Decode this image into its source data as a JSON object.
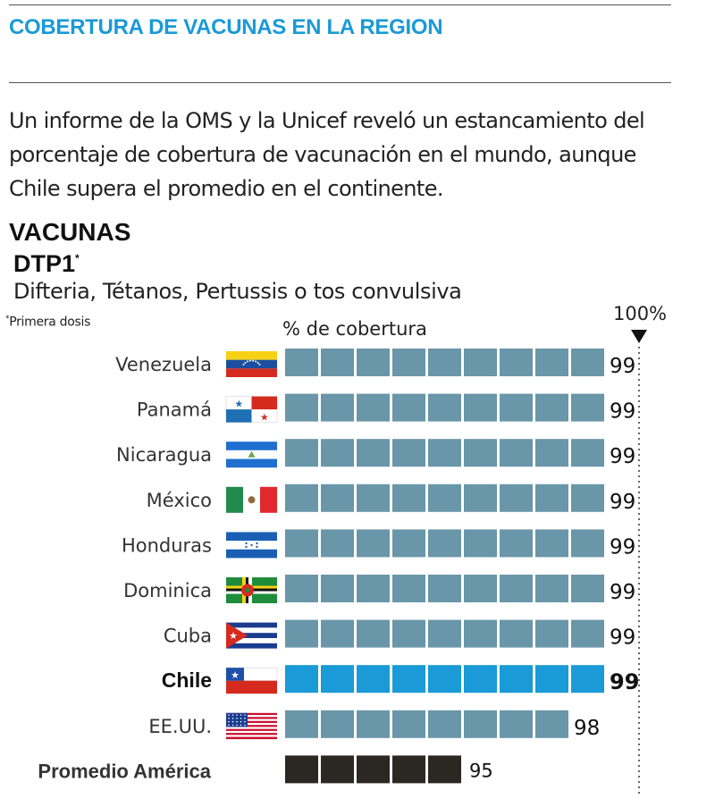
{
  "header": {
    "title": "COBERTURA DE VACUNAS EN LA REGION"
  },
  "intro": "Un informe de la OMS y la Unicef reveló un estancamiento del porcentaje de cobertura de vacunación en el mundo, aunque Chile supera el promedio en el continente.",
  "section_title": "VACUNAS",
  "vaccine": {
    "name": "DTP1",
    "name_mark": "*",
    "description": "Difteria, Tétanos, Pertussis o tos convulsiva"
  },
  "footnote": {
    "mark": "*",
    "text": "Primera dosis"
  },
  "colors": {
    "bar_default": "#6996a8",
    "bar_highlight": "#1a9ad6",
    "bar_average": "#2b2722",
    "accent": "#1a9ad6"
  },
  "chart_data": {
    "type": "bar",
    "orientation": "horizontal",
    "xlabel": "% de cobertura",
    "reference_line": {
      "label": "100%",
      "value": 100
    },
    "x_axis_visible_range": [
      90,
      100
    ],
    "categories": [
      "Venezuela",
      "Panamá",
      "Nicaragua",
      "México",
      "Honduras",
      "Dominica",
      "Cuba",
      "Chile",
      "EE.UU.",
      "Promedio América"
    ],
    "values": [
      99,
      99,
      99,
      99,
      99,
      99,
      99,
      99,
      98,
      95
    ],
    "flags": [
      "venezuela-flag",
      "panama-flag",
      "nicaragua-flag",
      "mexico-flag",
      "honduras-flag",
      "dominica-flag",
      "cuba-flag",
      "chile-flag",
      "usa-flag",
      null
    ],
    "highlight": "Chile",
    "average_category": "Promedio América"
  }
}
